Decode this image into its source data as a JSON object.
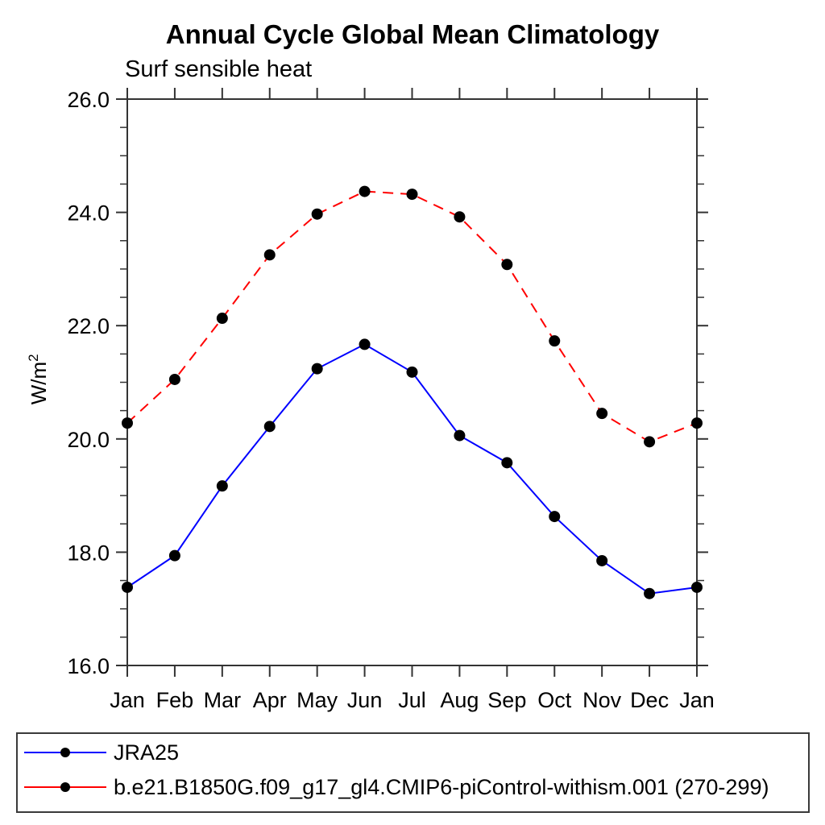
{
  "chart_data": {
    "type": "line",
    "title": "Annual Cycle Global Mean Climatology",
    "subtitle": "Surf sensible heat",
    "ylabel_base": "W/m",
    "ylabel_sup": "2",
    "categories": [
      "Jan",
      "Feb",
      "Mar",
      "Apr",
      "May",
      "Jun",
      "Jul",
      "Aug",
      "Sep",
      "Oct",
      "Nov",
      "Dec",
      "Jan"
    ],
    "ylim": [
      16.0,
      26.0
    ],
    "yticks": {
      "values": [
        16,
        18,
        20,
        22,
        24,
        26
      ],
      "labels": [
        "16.0",
        "18.0",
        "20.0",
        "22.0",
        "24.0",
        "26.0"
      ],
      "minor_step": 0.5
    },
    "grid": "off",
    "legend_position": "bottom",
    "axis_color": "#333333",
    "series": [
      {
        "name": "JRA25",
        "color": "#0000ff",
        "style": "solid",
        "marker": "circle",
        "marker_color": "#000000",
        "values": [
          17.38,
          17.94,
          19.17,
          20.22,
          21.24,
          21.67,
          21.18,
          20.06,
          19.58,
          18.63,
          17.85,
          17.27,
          17.38
        ]
      },
      {
        "name": "b.e21.B1850G.f09_g17_gl4.CMIP6-piControl-withism.001 (270-299)",
        "color": "#ff0000",
        "style": "dashed",
        "marker": "circle",
        "marker_color": "#000000",
        "values": [
          20.28,
          21.05,
          22.13,
          23.25,
          23.97,
          24.37,
          24.32,
          23.92,
          23.08,
          21.73,
          20.45,
          19.95,
          20.28
        ]
      }
    ]
  }
}
